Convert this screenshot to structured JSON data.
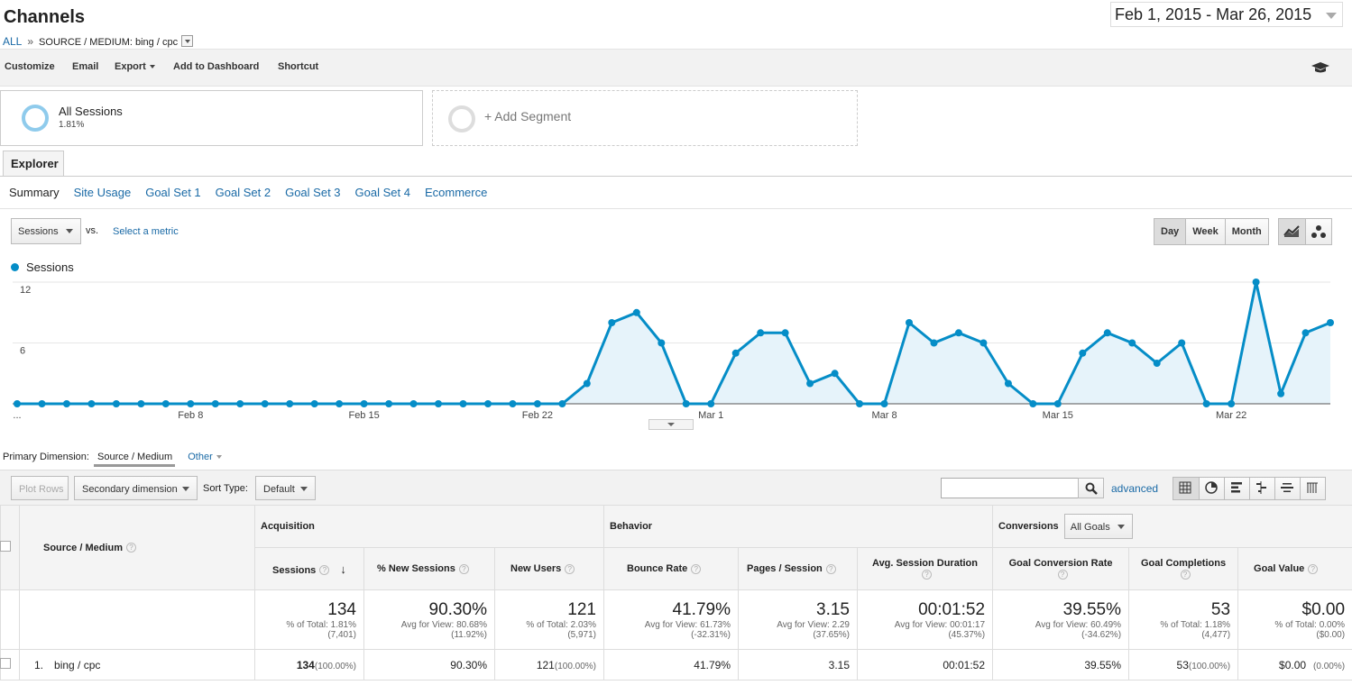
{
  "header": {
    "title": "Channels",
    "breadcrumb_all": "ALL",
    "breadcrumb_sep": "»",
    "breadcrumb_current": "SOURCE / MEDIUM: bing / cpc",
    "date_range": "Feb 1, 2015 - Mar 26, 2015"
  },
  "toolbar": {
    "customize": "Customize",
    "email": "Email",
    "export": "Export",
    "add_to_dashboard": "Add to Dashboard",
    "shortcut": "Shortcut"
  },
  "segments": {
    "all_sessions": "All Sessions",
    "all_sessions_pct": "1.81%",
    "add_segment": "+ Add Segment"
  },
  "tabs": {
    "explorer": "Explorer",
    "subtabs": [
      "Summary",
      "Site Usage",
      "Goal Set 1",
      "Goal Set 2",
      "Goal Set 3",
      "Goal Set 4",
      "Ecommerce"
    ]
  },
  "chart_controls": {
    "metric": "Sessions",
    "vs": "vs.",
    "select_metric": "Select a metric",
    "day": "Day",
    "week": "Week",
    "month": "Month"
  },
  "chart_data": {
    "type": "area",
    "legend": [
      "Sessions"
    ],
    "color": "#058dc7",
    "ylim": [
      0,
      12
    ],
    "yticks": [
      "12",
      "6"
    ],
    "xticks": [
      "...",
      "Feb 8",
      "Feb 15",
      "Feb 22",
      "Mar 1",
      "Mar 8",
      "Mar 15",
      "Mar 22"
    ],
    "x": [
      "Feb 1",
      "Feb 2",
      "Feb 3",
      "Feb 4",
      "Feb 5",
      "Feb 6",
      "Feb 7",
      "Feb 8",
      "Feb 9",
      "Feb 10",
      "Feb 11",
      "Feb 12",
      "Feb 13",
      "Feb 14",
      "Feb 15",
      "Feb 16",
      "Feb 17",
      "Feb 18",
      "Feb 19",
      "Feb 20",
      "Feb 21",
      "Feb 22",
      "Feb 23",
      "Feb 24",
      "Feb 25",
      "Feb 26",
      "Feb 27",
      "Feb 28",
      "Mar 1",
      "Mar 2",
      "Mar 3",
      "Mar 4",
      "Mar 5",
      "Mar 6",
      "Mar 7",
      "Mar 8",
      "Mar 9",
      "Mar 10",
      "Mar 11",
      "Mar 12",
      "Mar 13",
      "Mar 14",
      "Mar 15",
      "Mar 16",
      "Mar 17",
      "Mar 18",
      "Mar 19",
      "Mar 20",
      "Mar 21",
      "Mar 22",
      "Mar 23",
      "Mar 24",
      "Mar 25",
      "Mar 26"
    ],
    "series": [
      {
        "name": "Sessions",
        "values": [
          0,
          0,
          0,
          0,
          0,
          0,
          0,
          0,
          0,
          0,
          0,
          0,
          0,
          0,
          0,
          0,
          0,
          0,
          0,
          0,
          0,
          0,
          0,
          2,
          8,
          9,
          6,
          0,
          0,
          5,
          7,
          7,
          2,
          3,
          0,
          0,
          8,
          6,
          7,
          6,
          2,
          0,
          0,
          5,
          7,
          6,
          4,
          6,
          0,
          0,
          12,
          1,
          7,
          8
        ]
      }
    ]
  },
  "table_controls": {
    "primary_dimension_label": "Primary Dimension:",
    "primary_dimension_value": "Source / Medium",
    "other": "Other",
    "plot_rows": "Plot Rows",
    "secondary_dimension": "Secondary dimension",
    "sort_type_label": "Sort Type:",
    "sort_type_value": "Default",
    "search_placeholder": "",
    "advanced": "advanced"
  },
  "table": {
    "groups": {
      "acquisition": "Acquisition",
      "behavior": "Behavior",
      "conversions": "Conversions",
      "all_goals": "All Goals"
    },
    "dimension_header": "Source / Medium",
    "headers": [
      "Sessions",
      "% New Sessions",
      "New Users",
      "Bounce Rate",
      "Pages / Session",
      "Avg. Session Duration",
      "Goal Conversion Rate",
      "Goal Completions",
      "Goal Value"
    ],
    "totals": [
      {
        "value": "134",
        "sub1": "% of Total: 1.81%",
        "sub2": "(7,401)"
      },
      {
        "value": "90.30%",
        "sub1": "Avg for View: 80.68%",
        "sub2": "(11.92%)"
      },
      {
        "value": "121",
        "sub1": "% of Total: 2.03%",
        "sub2": "(5,971)"
      },
      {
        "value": "41.79%",
        "sub1": "Avg for View: 61.73%",
        "sub2": "(-32.31%)"
      },
      {
        "value": "3.15",
        "sub1": "Avg for View: 2.29",
        "sub2": "(37.65%)"
      },
      {
        "value": "00:01:52",
        "sub1": "Avg for View: 00:01:17",
        "sub2": "(45.37%)"
      },
      {
        "value": "39.55%",
        "sub1": "Avg for View: 60.49%",
        "sub2": "(-34.62%)"
      },
      {
        "value": "53",
        "sub1": "% of Total: 1.18%",
        "sub2": "(4,477)"
      },
      {
        "value": "$0.00",
        "sub1": "% of Total: 0.00%",
        "sub2": "($0.00)"
      }
    ],
    "row": {
      "index": "1.",
      "name": "bing / cpc",
      "sessions": "134",
      "sessions_pct": "(100.00%)",
      "new_sessions": "90.30%",
      "new_users": "121",
      "new_users_pct": "(100.00%)",
      "bounce_rate": "41.79%",
      "pages_session": "3.15",
      "avg_duration": "00:01:52",
      "goal_conv_rate": "39.55%",
      "goal_completions": "53",
      "goal_completions_pct": "(100.00%)",
      "goal_value": "$0.00",
      "goal_value_pct": "(0.00%)"
    }
  }
}
